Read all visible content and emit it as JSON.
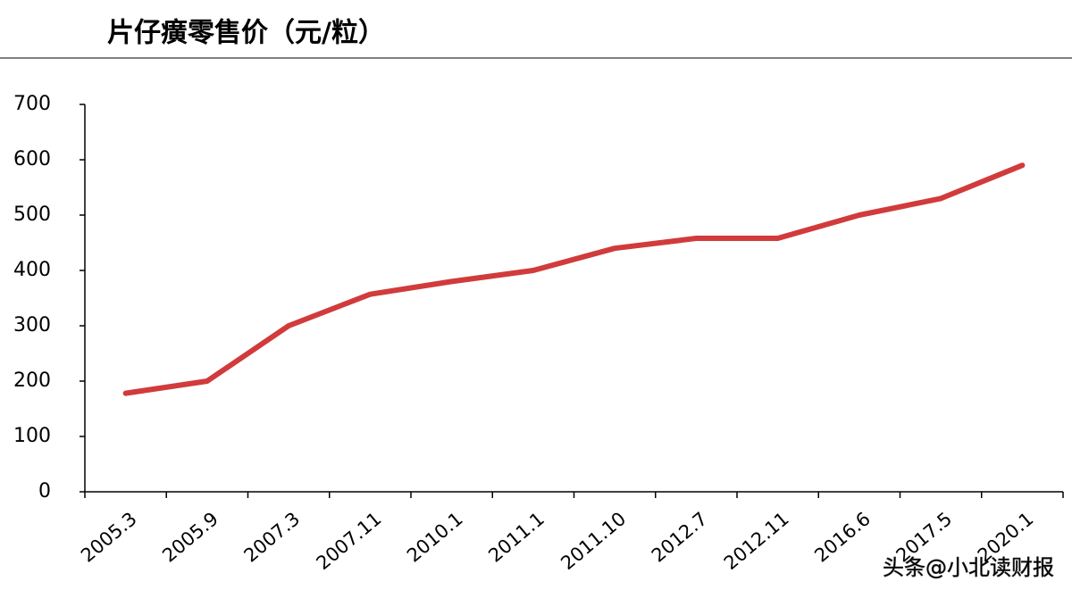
{
  "chart_data": {
    "type": "line",
    "title": "片仔癀零售价（元/粒）",
    "categories": [
      "2005.3",
      "2005.9",
      "2007.3",
      "2007.11",
      "2010.1",
      "2011.1",
      "2011.10",
      "2012.7",
      "2012.11",
      "2016.6",
      "2017.5",
      "2020.1"
    ],
    "series": [
      {
        "color": "#d13b3b",
        "values": [
          178,
          200,
          300,
          357,
          380,
          400,
          440,
          458,
          458,
          500,
          530,
          590
        ]
      }
    ],
    "ylim": [
      0,
      700
    ],
    "yticks": [
      0,
      100,
      200,
      300,
      400,
      500,
      600,
      700
    ],
    "watermark": "头条@小北读财报"
  }
}
